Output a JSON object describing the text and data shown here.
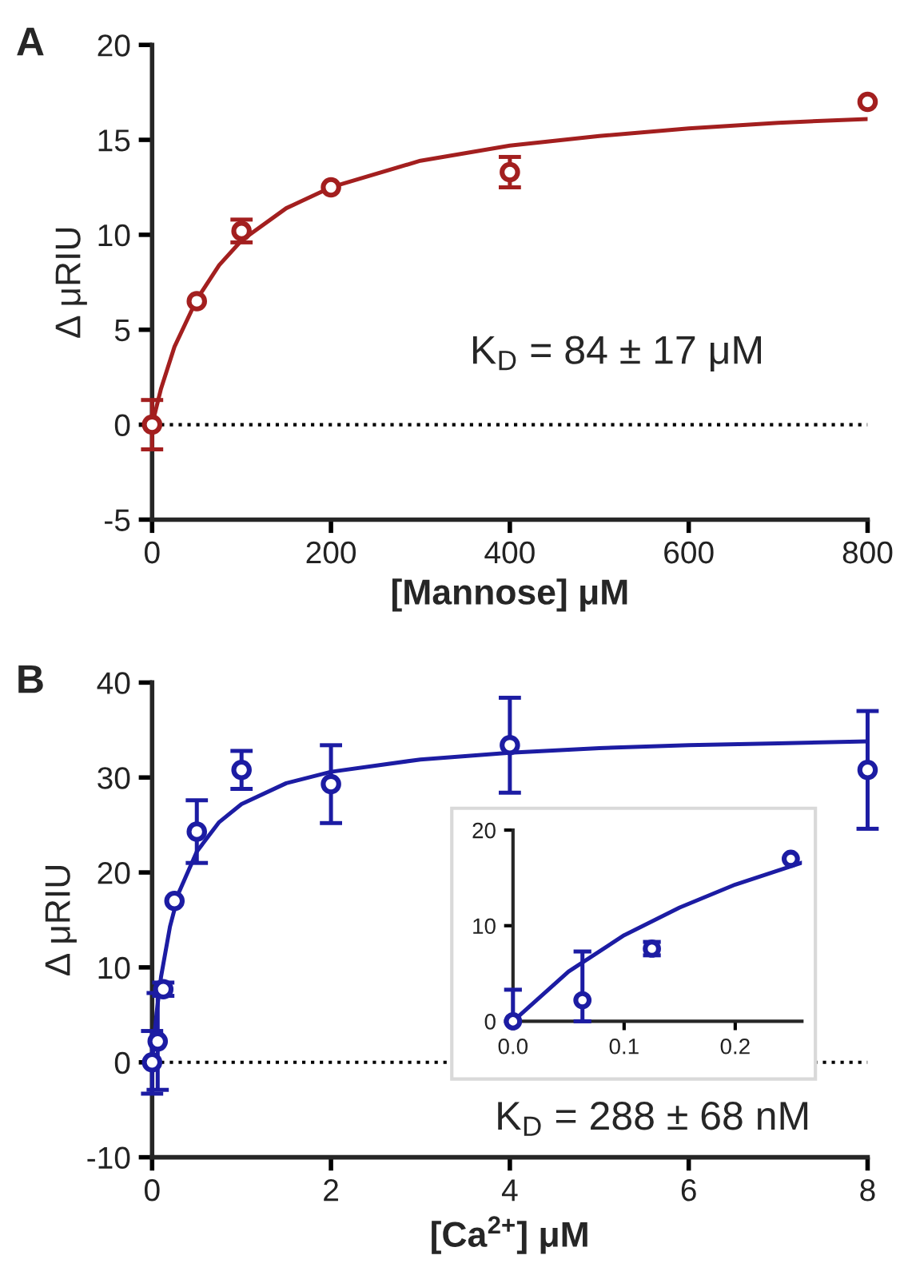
{
  "chart_data": [
    {
      "type": "scatter",
      "title": "A",
      "xlabel": "[Mannose] μM",
      "ylabel": "Δ μRIU",
      "x": [
        0,
        50,
        100,
        200,
        400,
        800
      ],
      "series": [
        {
          "color": "#a31f1f",
          "marker": "circle",
          "values": [
            0,
            6.5,
            10.2,
            12.5,
            13.3,
            17.0
          ],
          "errors": [
            1.3,
            null,
            0.6,
            null,
            0.8,
            null
          ]
        },
        {
          "type": "line",
          "color": "#a31f1f",
          "x": [
            0,
            10,
            25,
            50,
            75,
            100,
            150,
            200,
            300,
            400,
            500,
            600,
            700,
            800
          ],
          "values": [
            0,
            1.9,
            4.1,
            6.6,
            8.4,
            9.7,
            11.4,
            12.5,
            13.9,
            14.7,
            15.2,
            15.6,
            15.9,
            16.1
          ]
        }
      ],
      "xlim": [
        0,
        800
      ],
      "xticks": [
        0,
        200,
        400,
        600,
        800
      ],
      "ylim": [
        -5,
        20
      ],
      "yticks": [
        -5,
        0,
        5,
        10,
        15,
        20
      ],
      "ref_lines": [
        {
          "axis": "y",
          "value": 0,
          "line_style": "dotted",
          "color": "#000000"
        }
      ],
      "annotations": [
        "K$_{D}$ = 84 ± 17 μM"
      ],
      "grid": false,
      "legend": false
    },
    {
      "type": "scatter",
      "title": "B",
      "xlabel": "[Ca$^{2+}$] μM",
      "ylabel": "Δ μRIU",
      "x": [
        0,
        0.0625,
        0.125,
        0.25,
        0.5,
        1,
        2,
        4,
        8
      ],
      "series": [
        {
          "color": "#1c1ca3",
          "marker": "circle",
          "values": [
            0,
            2.2,
            7.7,
            17.0,
            24.3,
            30.8,
            29.3,
            33.4,
            30.8
          ],
          "errors": [
            3.3,
            5.1,
            0.7,
            null,
            3.3,
            2.0,
            4.1,
            5.0,
            6.2
          ]
        },
        {
          "type": "line",
          "color": "#1c1ca3",
          "x": [
            0,
            0.05,
            0.1,
            0.2,
            0.3,
            0.5,
            0.75,
            1,
            1.5,
            2,
            3,
            4,
            5,
            6,
            7,
            8
          ],
          "values": [
            0,
            5.2,
            9.0,
            14.3,
            17.9,
            22.2,
            25.3,
            27.2,
            29.4,
            30.6,
            31.9,
            32.6,
            33.1,
            33.4,
            33.6,
            33.8
          ]
        }
      ],
      "xlim": [
        0,
        8
      ],
      "xticks": [
        0,
        2,
        4,
        6,
        8
      ],
      "ylim": [
        -10,
        40
      ],
      "yticks": [
        -10,
        0,
        10,
        20,
        30,
        40
      ],
      "ref_lines": [
        {
          "axis": "y",
          "value": 0,
          "line_style": "dotted",
          "color": "#000000"
        }
      ],
      "annotations": [
        "K$_{D}$ = 288 ± 68 nM"
      ],
      "grid": false,
      "legend": false
    },
    {
      "type": "scatter",
      "x": [
        0,
        0.0625,
        0.125,
        0.25
      ],
      "series": [
        {
          "color": "#1c1ca3",
          "marker": "circle",
          "values": [
            0,
            2.2,
            7.6,
            17.0
          ],
          "errors": [
            [
              0,
              3.3
            ],
            [
              0,
              7.3
            ],
            0.7,
            null
          ]
        },
        {
          "type": "line",
          "color": "#1c1ca3",
          "x": [
            0,
            0.05,
            0.1,
            0.15,
            0.2,
            0.26
          ],
          "values": [
            0,
            5.2,
            9.0,
            11.9,
            14.3,
            16.6
          ]
        }
      ],
      "xlim": [
        0,
        0.26
      ],
      "xticks": [
        {
          "value": 0,
          "label": "0.0"
        },
        {
          "value": 0.1,
          "label": "0.1"
        },
        {
          "value": 0.2,
          "label": "0.2"
        }
      ],
      "ylim": [
        0,
        20
      ],
      "yticks": [
        0,
        10,
        20
      ],
      "grid": false,
      "legend": false
    }
  ]
}
